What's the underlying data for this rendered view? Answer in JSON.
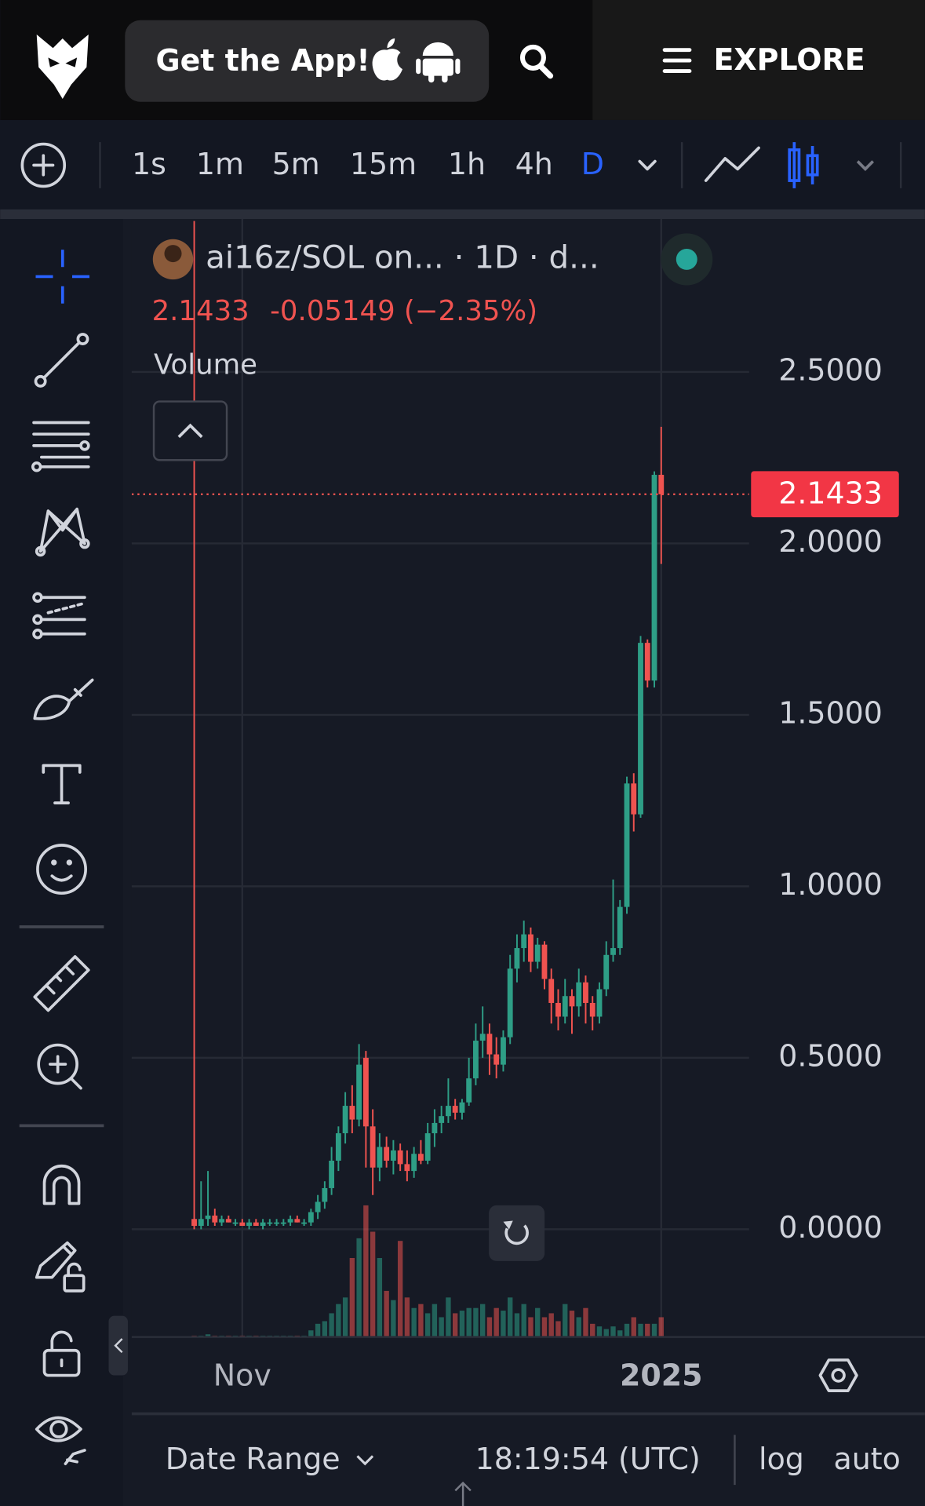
{
  "header": {
    "app_button": "Get the App!",
    "explore": "EXPLORE"
  },
  "timeframes": [
    "1s",
    "1m",
    "5m",
    "15m",
    "1h",
    "4h",
    "D"
  ],
  "chart_data": {
    "type": "candlestick",
    "title": "ai16z/SOL on... · 1D · d...",
    "last_price": 2.1433,
    "change": "-0.05149 (−2.35%)",
    "volume_label": "Volume",
    "up_color": "#2e9e86",
    "down_color": "#ef5350",
    "ylim": [
      -0.314,
      2.946
    ],
    "yticks": [
      {
        "value": 0,
        "label": "0.0000"
      },
      {
        "value": 0.5,
        "label": "0.5000"
      },
      {
        "value": 1,
        "label": "1.0000"
      },
      {
        "value": 1.5,
        "label": "1.5000"
      },
      {
        "value": 2,
        "label": "2.0000"
      },
      {
        "value": 2.5,
        "label": "2.5000"
      }
    ],
    "xlim": [
      -9.1,
      80.8
    ],
    "xticks": [
      {
        "value": 7,
        "label": "Nov"
      },
      {
        "value": 68,
        "label": "2025"
      }
    ],
    "open": [
      0.03,
      0.01,
      0.03,
      0.04,
      0.02,
      0.03,
      0.02,
      0.02,
      0.01,
      0.02,
      0.01,
      0.02,
      0.02,
      0.02,
      0.02,
      0.03,
      0.02,
      0.02,
      0.05,
      0.08,
      0.12,
      0.2,
      0.28,
      0.36,
      0.32,
      0.5,
      0.3,
      0.18,
      0.24,
      0.2,
      0.23,
      0.19,
      0.17,
      0.22,
      0.2,
      0.28,
      0.31,
      0.33,
      0.36,
      0.34,
      0.37,
      0.44,
      0.55,
      0.57,
      0.51,
      0.48,
      0.56,
      0.76,
      0.82,
      0.86,
      0.78,
      0.83,
      0.73,
      0.66,
      0.62,
      0.68,
      0.65,
      0.72,
      0.66,
      0.62,
      0.7,
      0.8,
      0.82,
      0.94,
      1.3,
      1.21,
      1.71,
      1.6,
      2.2
    ],
    "high": [
      2.94,
      0.14,
      0.17,
      0.06,
      0.04,
      0.04,
      0.03,
      0.03,
      0.03,
      0.03,
      0.03,
      0.03,
      0.03,
      0.03,
      0.04,
      0.04,
      0.03,
      0.06,
      0.1,
      0.14,
      0.24,
      0.3,
      0.4,
      0.42,
      0.54,
      0.52,
      0.35,
      0.28,
      0.27,
      0.26,
      0.25,
      0.23,
      0.24,
      0.26,
      0.31,
      0.35,
      0.36,
      0.44,
      0.38,
      0.38,
      0.5,
      0.6,
      0.65,
      0.6,
      0.56,
      0.58,
      0.8,
      0.86,
      0.9,
      0.88,
      0.85,
      0.84,
      0.76,
      0.7,
      0.73,
      0.7,
      0.76,
      0.74,
      0.68,
      0.72,
      0.84,
      1.02,
      0.96,
      1.32,
      1.33,
      1.73,
      1.72,
      2.21,
      2.34
    ],
    "low": [
      0,
      0,
      0.01,
      0.01,
      0.01,
      0.02,
      0.01,
      0.01,
      0,
      0.01,
      0,
      0.01,
      0.01,
      0.01,
      0.01,
      0.02,
      0.01,
      0.01,
      0.03,
      0.06,
      0.1,
      0.17,
      0.25,
      0.28,
      0.3,
      0.18,
      0.1,
      0.14,
      0.18,
      0.16,
      0.17,
      0.14,
      0.15,
      0.19,
      0.19,
      0.24,
      0.28,
      0.31,
      0.32,
      0.32,
      0.36,
      0.42,
      0.5,
      0.45,
      0.44,
      0.46,
      0.54,
      0.72,
      0.78,
      0.75,
      0.76,
      0.7,
      0.6,
      0.58,
      0.6,
      0.57,
      0.62,
      0.6,
      0.58,
      0.6,
      0.68,
      0.78,
      0.8,
      0.92,
      1.16,
      1.2,
      1.58,
      1.58,
      1.94
    ],
    "close": [
      0.01,
      0.03,
      0.04,
      0.02,
      0.03,
      0.02,
      0.02,
      0.01,
      0.02,
      0.01,
      0.02,
      0.02,
      0.02,
      0.02,
      0.03,
      0.02,
      0.02,
      0.05,
      0.08,
      0.12,
      0.2,
      0.28,
      0.36,
      0.32,
      0.48,
      0.3,
      0.18,
      0.24,
      0.2,
      0.23,
      0.19,
      0.17,
      0.22,
      0.2,
      0.28,
      0.31,
      0.33,
      0.36,
      0.34,
      0.37,
      0.44,
      0.55,
      0.57,
      0.51,
      0.48,
      0.56,
      0.76,
      0.82,
      0.86,
      0.78,
      0.83,
      0.73,
      0.66,
      0.62,
      0.68,
      0.65,
      0.72,
      0.66,
      0.62,
      0.7,
      0.8,
      0.82,
      0.94,
      1.3,
      1.21,
      1.71,
      1.6,
      2.2,
      2.1433
    ],
    "volume": [
      1,
      1,
      2,
      1,
      1,
      1,
      1,
      1,
      1,
      1,
      1,
      1,
      1,
      1,
      1,
      1,
      1,
      5,
      10,
      12,
      18,
      25,
      30,
      60,
      75,
      100,
      80,
      60,
      35,
      28,
      73,
      30,
      22,
      25,
      18,
      25,
      15,
      30,
      18,
      20,
      22,
      22,
      25,
      15,
      22,
      20,
      30,
      18,
      25,
      15,
      22,
      15,
      18,
      12,
      25,
      20,
      15,
      22,
      10,
      8,
      6,
      8,
      5,
      10,
      15,
      10,
      10,
      10,
      15
    ],
    "vlim": [
      0,
      100
    ]
  },
  "footer": {
    "date_range": "Date Range",
    "time": "18:19:54 (UTC)",
    "log": "log",
    "auto": "auto"
  }
}
